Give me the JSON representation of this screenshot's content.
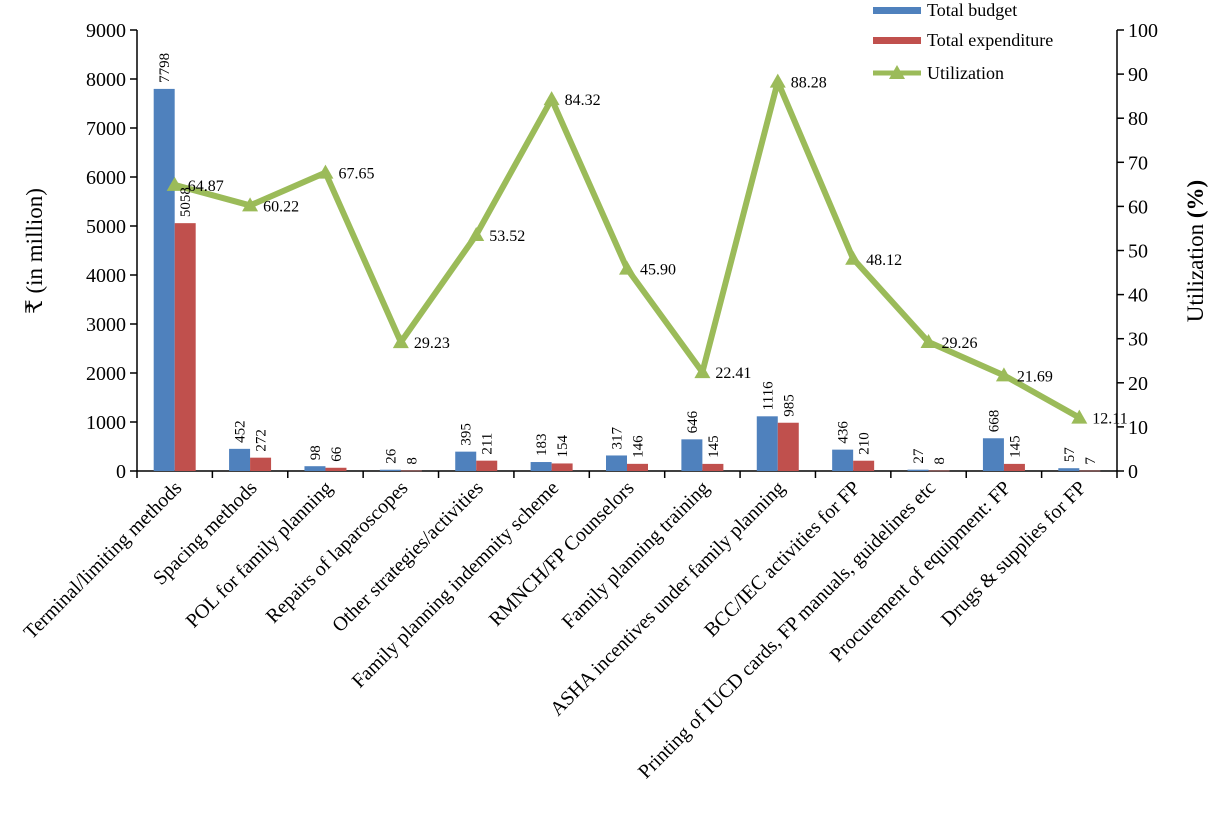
{
  "chart_data": {
    "type": "bar",
    "categories": [
      "Terminal/limiting methods",
      "Spacing methods",
      "POL for family planning",
      "Repairs of laparoscopes",
      "Other strategies/activities",
      "Family planning indemnity scheme",
      "RMNCH/FP Counselors",
      "Family planning training",
      "ASHA incentives under family planning",
      "BCC/IEC activities for FP",
      "Printing of IUCD cards, FP manuals, guidelines etc",
      "Procurement of equipment:  FP",
      "Drugs & supplies for FP"
    ],
    "series": [
      {
        "name": "Total budget",
        "type": "bar",
        "axis": "left",
        "color": "#4f81bd",
        "values": [
          7798,
          452,
          98,
          26,
          395,
          183,
          317,
          646,
          1116,
          436,
          27,
          668,
          57
        ],
        "labels": [
          "7798",
          "452",
          "98",
          "26",
          "395",
          "183",
          "317",
          "646",
          "1116",
          "436",
          "27",
          "668",
          "57"
        ]
      },
      {
        "name": "Total  expenditure",
        "type": "bar",
        "axis": "left",
        "color": "#c0504d",
        "values": [
          5058,
          272,
          66,
          8,
          211,
          154,
          146,
          145,
          985,
          210,
          8,
          145,
          7
        ],
        "labels": [
          "5058",
          "272",
          "66",
          "8",
          "211",
          "154",
          "146",
          "145",
          "985",
          "210",
          "8",
          "145",
          "7"
        ]
      },
      {
        "name": "Utilization",
        "type": "line",
        "axis": "right",
        "color": "#9bbb59",
        "values": [
          64.87,
          60.22,
          67.65,
          29.23,
          53.52,
          84.32,
          45.9,
          22.41,
          88.28,
          48.12,
          29.26,
          21.69,
          12.11
        ],
        "labels": [
          "64.87",
          "60.22",
          "67.65",
          "29.23",
          "53.52",
          "84.32",
          "45.90",
          "22.41",
          "88.28",
          "48.12",
          "29.26",
          "21.69",
          "12.11"
        ]
      }
    ],
    "ylabel": "₹ (in million)",
    "y2label_main": "Utilization ",
    "y2label_unit": "(%)",
    "ylim": [
      0,
      9000
    ],
    "ytick_labels": [
      "0",
      "1000",
      "2000",
      "3000",
      "4000",
      "5000",
      "6000",
      "7000",
      "8000",
      "9000"
    ],
    "y2lim": [
      0,
      100
    ],
    "y2tick_labels": [
      "0",
      "10",
      "20",
      "30",
      "40",
      "50",
      "60",
      "70",
      "80",
      "90",
      "100"
    ],
    "legend": "top-right",
    "grid": false
  }
}
